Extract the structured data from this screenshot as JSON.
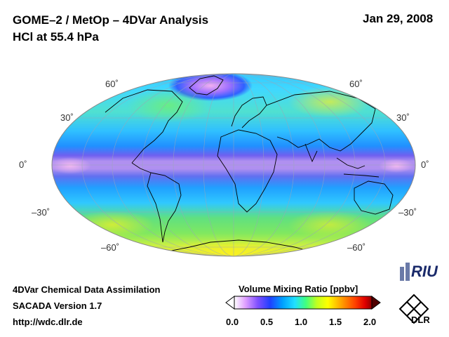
{
  "header": {
    "title_line1": "GOME–2 / MetOp – 4DVar Analysis",
    "title_line2": "HCl at 55.4 hPa",
    "date": "Jan 29, 2008"
  },
  "map": {
    "projection": "Hammer-Aitoff (global)",
    "lat_labels_left": [
      "60˚",
      "30˚",
      "0˚",
      "–30˚",
      "–60˚"
    ],
    "lat_labels_right": [
      "60˚",
      "30˚",
      "0˚",
      "–30˚",
      "–60˚"
    ],
    "field": "HCl volume mixing ratio"
  },
  "footer": {
    "line1": "4DVar Chemical Data Assimilation",
    "line2": "SACADA Version 1.7",
    "line3": "http://wdc.dlr.de",
    "riu_logo": "RIU",
    "dlr_logo": "DLR"
  },
  "colorbar": {
    "title": "Volume Mixing Ratio [ppbv]",
    "ticks": [
      "0.0",
      "0.5",
      "1.0",
      "1.5",
      "2.0"
    ],
    "range": [
      0.0,
      2.0
    ],
    "colors": [
      "#ffffff",
      "#e0a0ff",
      "#8050ff",
      "#2040ff",
      "#00a0ff",
      "#20e0ff",
      "#40ff80",
      "#c0ff20",
      "#ffff00",
      "#ffa000",
      "#ff4000",
      "#e00000",
      "#900000"
    ]
  }
}
